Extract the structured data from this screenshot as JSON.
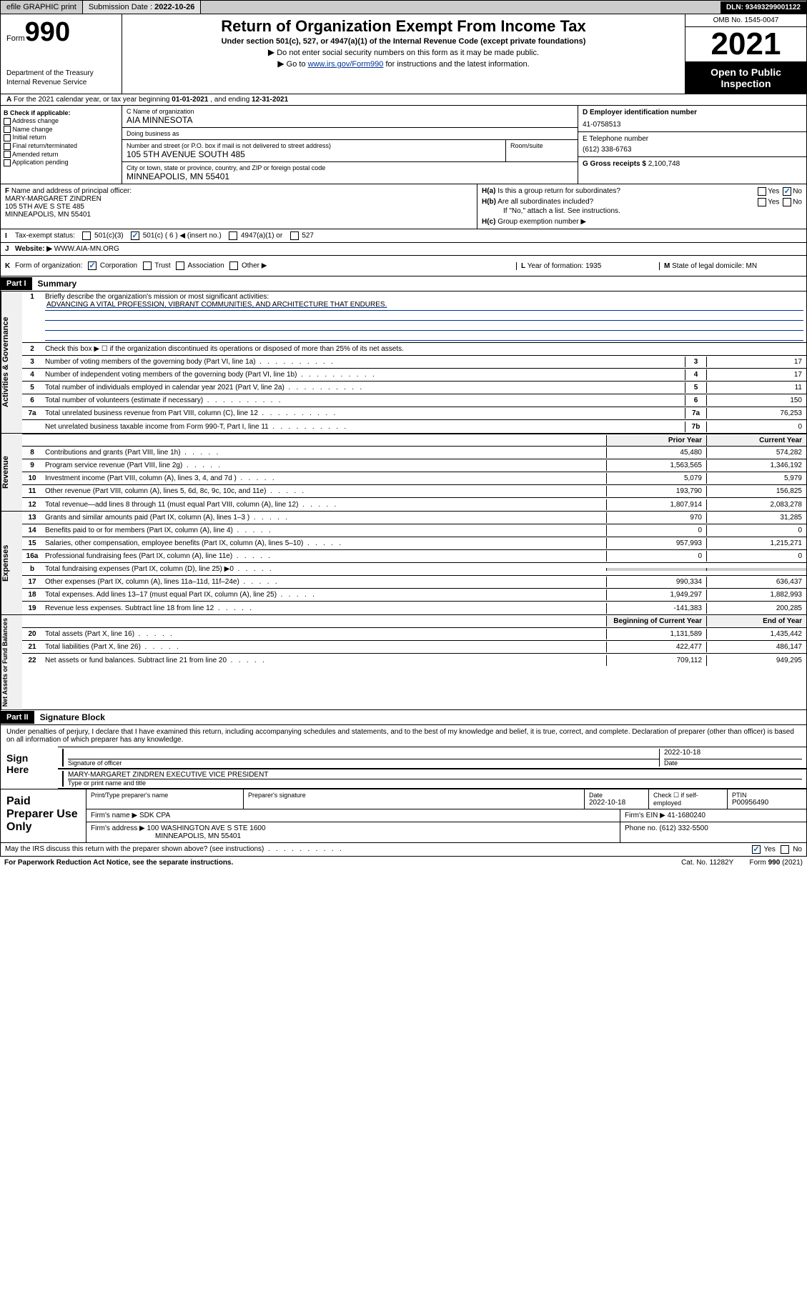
{
  "toolbar": {
    "efile": "efile GRAPHIC print",
    "submission_label": "Submission Date : ",
    "submission_date": "2022-10-26",
    "dln_label": "DLN: ",
    "dln": "93493299001122"
  },
  "header": {
    "form_word": "Form",
    "form_number": "990",
    "dept1": "Department of the Treasury",
    "dept2": "Internal Revenue Service",
    "title": "Return of Organization Exempt From Income Tax",
    "subtitle": "Under section 501(c), 527, or 4947(a)(1) of the Internal Revenue Code (except private foundations)",
    "instr1": "Do not enter social security numbers on this form as it may be made public.",
    "instr2_pre": "Go to ",
    "instr2_link": "www.irs.gov/Form990",
    "instr2_post": " for instructions and the latest information.",
    "omb": "OMB No. 1545-0047",
    "year": "2021",
    "otp1": "Open to Public",
    "otp2": "Inspection"
  },
  "rowA": {
    "label": "A",
    "text": "For the 2021 calendar year, or tax year beginning ",
    "begin": "01-01-2021",
    "mid": " , and ending ",
    "end": "12-31-2021"
  },
  "colB": {
    "label": "B Check if applicable:",
    "items": [
      "Address change",
      "Name change",
      "Initial return",
      "Final return/terminated",
      "Amended return",
      "Application pending"
    ]
  },
  "colC": {
    "name_label": "C Name of organization",
    "name": "AIA MINNESOTA",
    "dba_label": "Doing business as",
    "dba": "",
    "addr_label": "Number and street (or P.O. box if mail is not delivered to street address)",
    "room_label": "Room/suite",
    "addr": "105 5TH AVENUE SOUTH 485",
    "city_label": "City or town, state or province, country, and ZIP or foreign postal code",
    "city": "MINNEAPOLIS, MN  55401"
  },
  "colD": {
    "ein_label": "D Employer identification number",
    "ein": "41-0758513",
    "tel_label": "E Telephone number",
    "tel": "(612) 338-6763",
    "gross_label": "G Gross receipts $ ",
    "gross": "2,100,748"
  },
  "rowF": {
    "label": "F",
    "text": "Name and address of principal officer:",
    "name": "MARY-MARGARET ZINDREN",
    "addr1": "105 5TH AVE S STE 485",
    "addr2": "MINNEAPOLIS, MN  55401"
  },
  "rowH": {
    "ha_label": "H(a)",
    "ha_text": "Is this a group return for subordinates?",
    "hb_label": "H(b)",
    "hb_text": "Are all subordinates included?",
    "hb_note": "If \"No,\" attach a list. See instructions.",
    "hc_label": "H(c)",
    "hc_text": "Group exemption number ▶",
    "yes": "Yes",
    "no": "No"
  },
  "rowI": {
    "label": "I",
    "text": "Tax-exempt status:",
    "opts": [
      "501(c)(3)",
      "501(c) ( 6 ) ◀ (insert no.)",
      "4947(a)(1) or",
      "527"
    ]
  },
  "rowJ": {
    "label": "J",
    "text": "Website: ▶",
    "val": "WWW.AIA-MN.ORG"
  },
  "rowK": {
    "label": "K",
    "text": "Form of organization:",
    "opts": [
      "Corporation",
      "Trust",
      "Association",
      "Other ▶"
    ]
  },
  "rowL": {
    "label": "L",
    "text": "Year of formation: ",
    "val": "1935"
  },
  "rowM": {
    "label": "M",
    "text": "State of legal domicile: ",
    "val": "MN"
  },
  "part1": {
    "hdr": "Part I",
    "title": "Summary"
  },
  "mission": {
    "num": "1",
    "label": "Briefly describe the organization's mission or most significant activities:",
    "text": "ADVANCING A VITAL PROFESSION, VIBRANT COMMUNITIES, AND ARCHITECTURE THAT ENDURES."
  },
  "line2": {
    "num": "2",
    "text": "Check this box ▶ ☐  if the organization discontinued its operations or disposed of more than 25% of its net assets."
  },
  "gov_lines": [
    {
      "n": "3",
      "d": "Number of voting members of the governing body (Part VI, line 1a)",
      "c": "3",
      "v": "17"
    },
    {
      "n": "4",
      "d": "Number of independent voting members of the governing body (Part VI, line 1b)",
      "c": "4",
      "v": "17"
    },
    {
      "n": "5",
      "d": "Total number of individuals employed in calendar year 2021 (Part V, line 2a)",
      "c": "5",
      "v": "11"
    },
    {
      "n": "6",
      "d": "Total number of volunteers (estimate if necessary)",
      "c": "6",
      "v": "150"
    },
    {
      "n": "7a",
      "d": "Total unrelated business revenue from Part VIII, column (C), line 12",
      "c": "7a",
      "v": "76,253"
    },
    {
      "n": "",
      "d": "Net unrelated business taxable income from Form 990-T, Part I, line 11",
      "c": "7b",
      "v": "0"
    }
  ],
  "col_headers": {
    "prior": "Prior Year",
    "current": "Current Year"
  },
  "rev_lines": [
    {
      "n": "8",
      "d": "Contributions and grants (Part VIII, line 1h)",
      "p": "45,480",
      "c": "574,282"
    },
    {
      "n": "9",
      "d": "Program service revenue (Part VIII, line 2g)",
      "p": "1,563,565",
      "c": "1,346,192"
    },
    {
      "n": "10",
      "d": "Investment income (Part VIII, column (A), lines 3, 4, and 7d )",
      "p": "5,079",
      "c": "5,979"
    },
    {
      "n": "11",
      "d": "Other revenue (Part VIII, column (A), lines 5, 6d, 8c, 9c, 10c, and 11e)",
      "p": "193,790",
      "c": "156,825"
    },
    {
      "n": "12",
      "d": "Total revenue—add lines 8 through 11 (must equal Part VIII, column (A), line 12)",
      "p": "1,807,914",
      "c": "2,083,278"
    }
  ],
  "exp_lines": [
    {
      "n": "13",
      "d": "Grants and similar amounts paid (Part IX, column (A), lines 1–3 )",
      "p": "970",
      "c": "31,285"
    },
    {
      "n": "14",
      "d": "Benefits paid to or for members (Part IX, column (A), line 4)",
      "p": "0",
      "c": "0"
    },
    {
      "n": "15",
      "d": "Salaries, other compensation, employee benefits (Part IX, column (A), lines 5–10)",
      "p": "957,993",
      "c": "1,215,271"
    },
    {
      "n": "16a",
      "d": "Professional fundraising fees (Part IX, column (A), line 11e)",
      "p": "0",
      "c": "0"
    },
    {
      "n": "b",
      "d": "Total fundraising expenses (Part IX, column (D), line 25) ▶0",
      "p": "",
      "c": "",
      "shade": true
    },
    {
      "n": "17",
      "d": "Other expenses (Part IX, column (A), lines 11a–11d, 11f–24e)",
      "p": "990,334",
      "c": "636,437"
    },
    {
      "n": "18",
      "d": "Total expenses. Add lines 13–17 (must equal Part IX, column (A), line 25)",
      "p": "1,949,297",
      "c": "1,882,993"
    },
    {
      "n": "19",
      "d": "Revenue less expenses. Subtract line 18 from line 12",
      "p": "-141,383",
      "c": "200,285"
    }
  ],
  "net_headers": {
    "begin": "Beginning of Current Year",
    "end": "End of Year"
  },
  "net_lines": [
    {
      "n": "20",
      "d": "Total assets (Part X, line 16)",
      "p": "1,131,589",
      "c": "1,435,442"
    },
    {
      "n": "21",
      "d": "Total liabilities (Part X, line 26)",
      "p": "422,477",
      "c": "486,147"
    },
    {
      "n": "22",
      "d": "Net assets or fund balances. Subtract line 21 from line 20",
      "p": "709,112",
      "c": "949,295"
    }
  ],
  "vtabs": {
    "gov": "Activities & Governance",
    "rev": "Revenue",
    "exp": "Expenses",
    "net": "Net Assets or Fund Balances"
  },
  "part2": {
    "hdr": "Part II",
    "title": "Signature Block"
  },
  "sig": {
    "penalties": "Under penalties of perjury, I declare that I have examined this return, including accompanying schedules and statements, and to the best of my knowledge and belief, it is true, correct, and complete. Declaration of preparer (other than officer) is based on all information of which preparer has any knowledge.",
    "sign_here": "Sign Here",
    "sig_officer": "Signature of officer",
    "date": "Date",
    "sig_date_val": "2022-10-18",
    "name_title": "MARY-MARGARET ZINDREN  EXECUTIVE VICE PRESIDENT",
    "type_name": "Type or print name and title"
  },
  "prep": {
    "label": "Paid Preparer Use Only",
    "headers": {
      "name": "Print/Type preparer's name",
      "sig": "Preparer's signature",
      "date": "Date",
      "check": "Check ☐ if self-employed",
      "ptin": "PTIN"
    },
    "date_val": "2022-10-18",
    "ptin_val": "P00956490",
    "firm_name_label": "Firm's name    ▶",
    "firm_name": "SDK CPA",
    "firm_ein_label": "Firm's EIN ▶",
    "firm_ein": "41-1680240",
    "firm_addr_label": "Firm's address ▶",
    "firm_addr1": "100 WASHINGTON AVE S STE 1600",
    "firm_addr2": "MINNEAPOLIS, MN  55401",
    "phone_label": "Phone no. ",
    "phone": "(612) 332-5500"
  },
  "footer": {
    "discuss": "May the IRS discuss this return with the preparer shown above? (see instructions)",
    "pra": "For Paperwork Reduction Act Notice, see the separate instructions.",
    "cat": "Cat. No. 11282Y",
    "form": "Form 990 (2021)",
    "yes": "Yes",
    "no": "No"
  },
  "colors": {
    "link": "#003399",
    "check": "#0066cc",
    "toolbar_bg": "#cccccc"
  }
}
